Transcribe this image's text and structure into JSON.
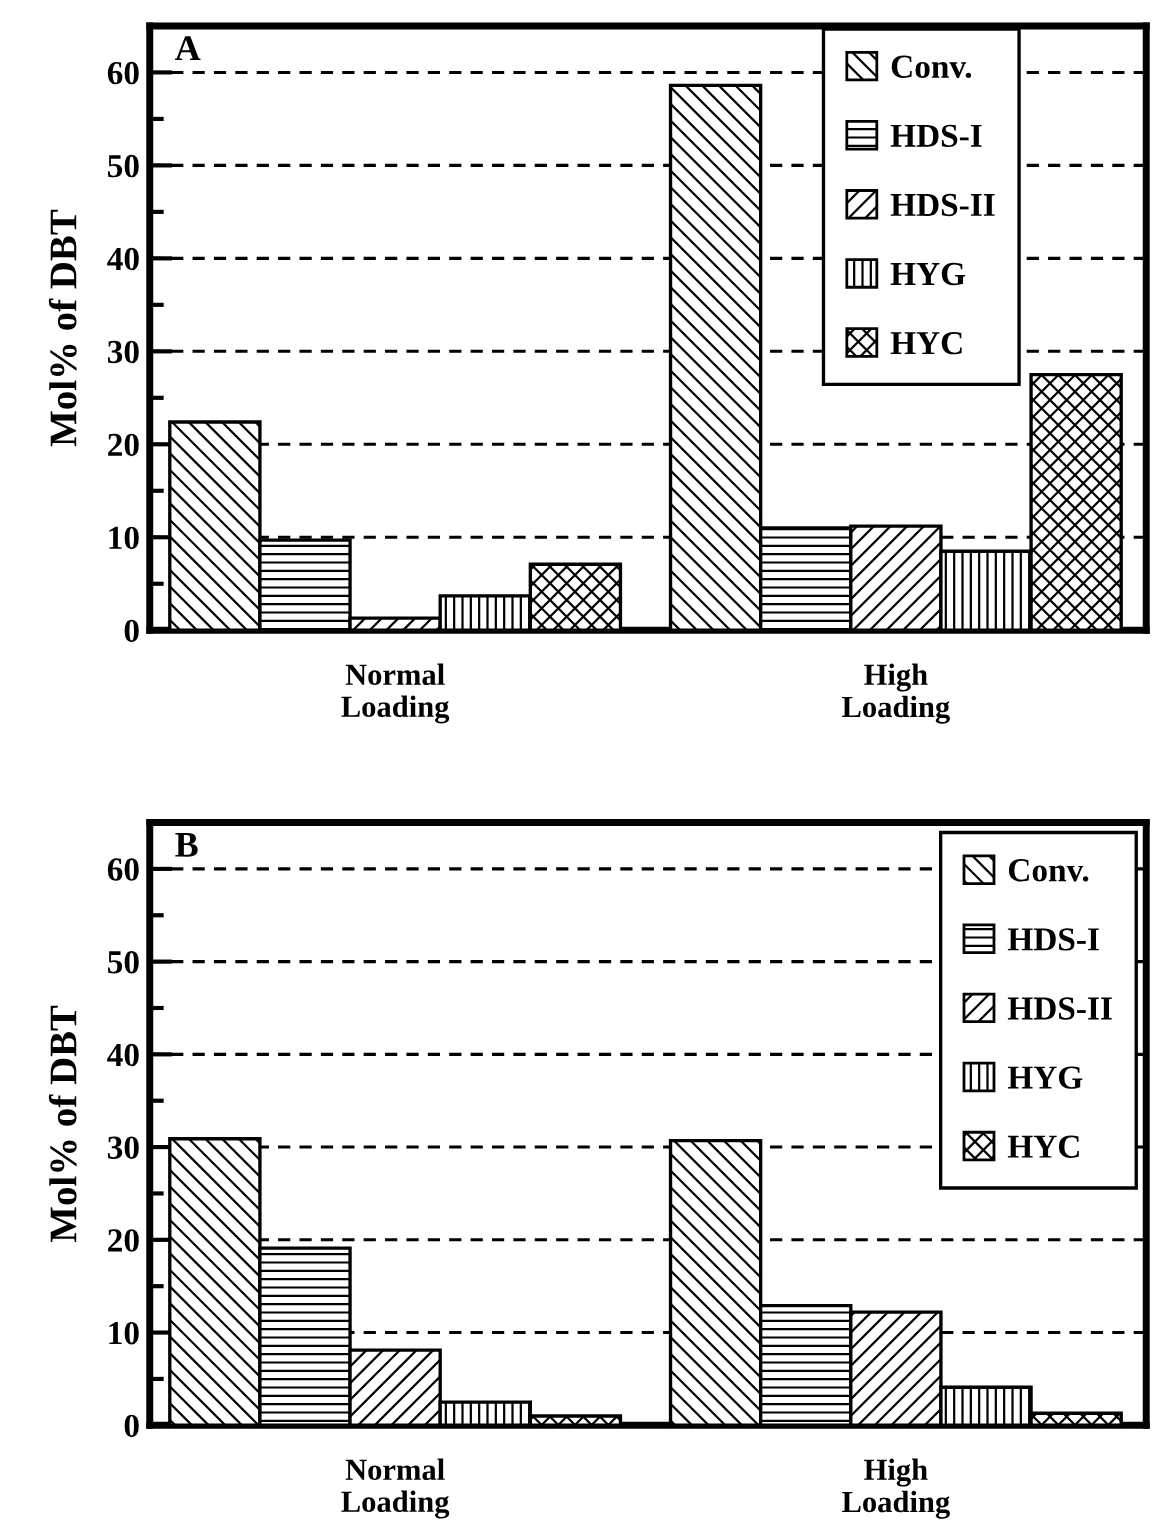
{
  "chart_data": [
    {
      "type": "bar",
      "ylabel": "Mol% of DBT",
      "annotations": [
        "A"
      ],
      "categories": [
        "Normal\nLoading",
        "High\nLoading"
      ],
      "series": [
        {
          "name": "Conv.",
          "color": "#000000",
          "values": [
            22.4,
            58.6
          ]
        },
        {
          "name": "HDS-I",
          "color": "#000000",
          "values": [
            9.7,
            11.0
          ]
        },
        {
          "name": "HDS-II",
          "color": "#000000",
          "values": [
            1.3,
            11.2
          ]
        },
        {
          "name": "HYG",
          "color": "#000000",
          "values": [
            3.7,
            8.5
          ]
        },
        {
          "name": "HYC",
          "color": "#000000",
          "values": [
            7.1,
            27.5
          ]
        }
      ],
      "ylim": [
        0,
        65
      ],
      "yticks": [
        0,
        {
          "value": 5,
          "label": null
        },
        10,
        {
          "value": 15,
          "label": null
        },
        20,
        {
          "value": 25,
          "label": null
        },
        30,
        {
          "value": 35,
          "label": null
        },
        40,
        {
          "value": 45,
          "label": null
        },
        50,
        {
          "value": 55,
          "label": null
        },
        60
      ],
      "grid": "y",
      "legend": "top right"
    },
    {
      "type": "bar",
      "ylabel": "Mol% of DBT",
      "annotations": [
        "B"
      ],
      "categories": [
        "Normal\nLoading",
        "High\nLoading"
      ],
      "series": [
        {
          "name": "Conv.",
          "color": "#000000",
          "values": [
            30.9,
            30.7
          ]
        },
        {
          "name": "HDS-I",
          "color": "#000000",
          "values": [
            19.1,
            12.9
          ]
        },
        {
          "name": "HDS-II",
          "color": "#000000",
          "values": [
            8.1,
            12.2
          ]
        },
        {
          "name": "HYG",
          "color": "#000000",
          "values": [
            2.5,
            4.1
          ]
        },
        {
          "name": "HYC",
          "color": "#000000",
          "values": [
            1.0,
            1.3
          ]
        }
      ],
      "ylim": [
        0,
        65
      ],
      "yticks": [
        0,
        {
          "value": 5,
          "label": null
        },
        10,
        {
          "value": 15,
          "label": null
        },
        20,
        {
          "value": 25,
          "label": null
        },
        30,
        {
          "value": 35,
          "label": null
        },
        40,
        {
          "value": 45,
          "label": null
        },
        50,
        {
          "value": 55,
          "label": null
        },
        60
      ],
      "grid": "y",
      "legend": "top right"
    }
  ]
}
